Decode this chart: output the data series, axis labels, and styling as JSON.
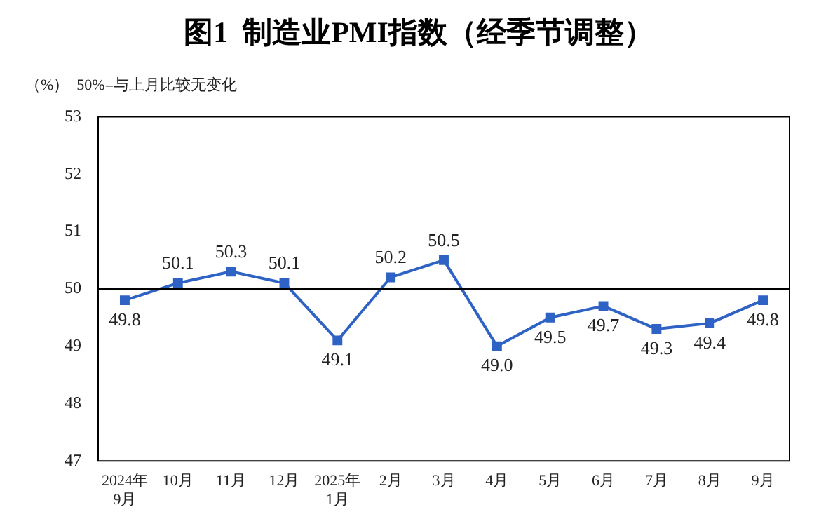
{
  "chart_data": {
    "type": "line",
    "title": "图1  制造业PMI指数（经季节调整）",
    "annotations": [
      "（%）  50%=与上月比较无变化"
    ],
    "categories": [
      "2024年\n9月",
      "10月",
      "11月",
      "12月",
      "2025年\n1月",
      "2月",
      "3月",
      "4月",
      "5月",
      "6月",
      "7月",
      "8月",
      "9月"
    ],
    "series": [
      {
        "color": "#2e62c4",
        "values": [
          49.8,
          50.1,
          50.3,
          50.1,
          49.1,
          50.2,
          50.5,
          49.0,
          49.5,
          49.7,
          49.3,
          49.4,
          49.8
        ],
        "value_labels": [
          "49.8",
          "50.1",
          "50.3",
          "50.1",
          "49.1",
          "50.2",
          "50.5",
          "49.0",
          "49.5",
          "49.7",
          "49.3",
          "49.4",
          "49.8"
        ]
      }
    ],
    "ylim": [
      47,
      53
    ],
    "yticks": [
      47,
      48,
      49,
      50,
      51,
      52,
      53
    ],
    "ref_lines": [
      {
        "axis": "y",
        "value": 50,
        "color": "#000000"
      }
    ],
    "marker": "square",
    "line_style": "solid",
    "grid": false,
    "legend": false
  }
}
